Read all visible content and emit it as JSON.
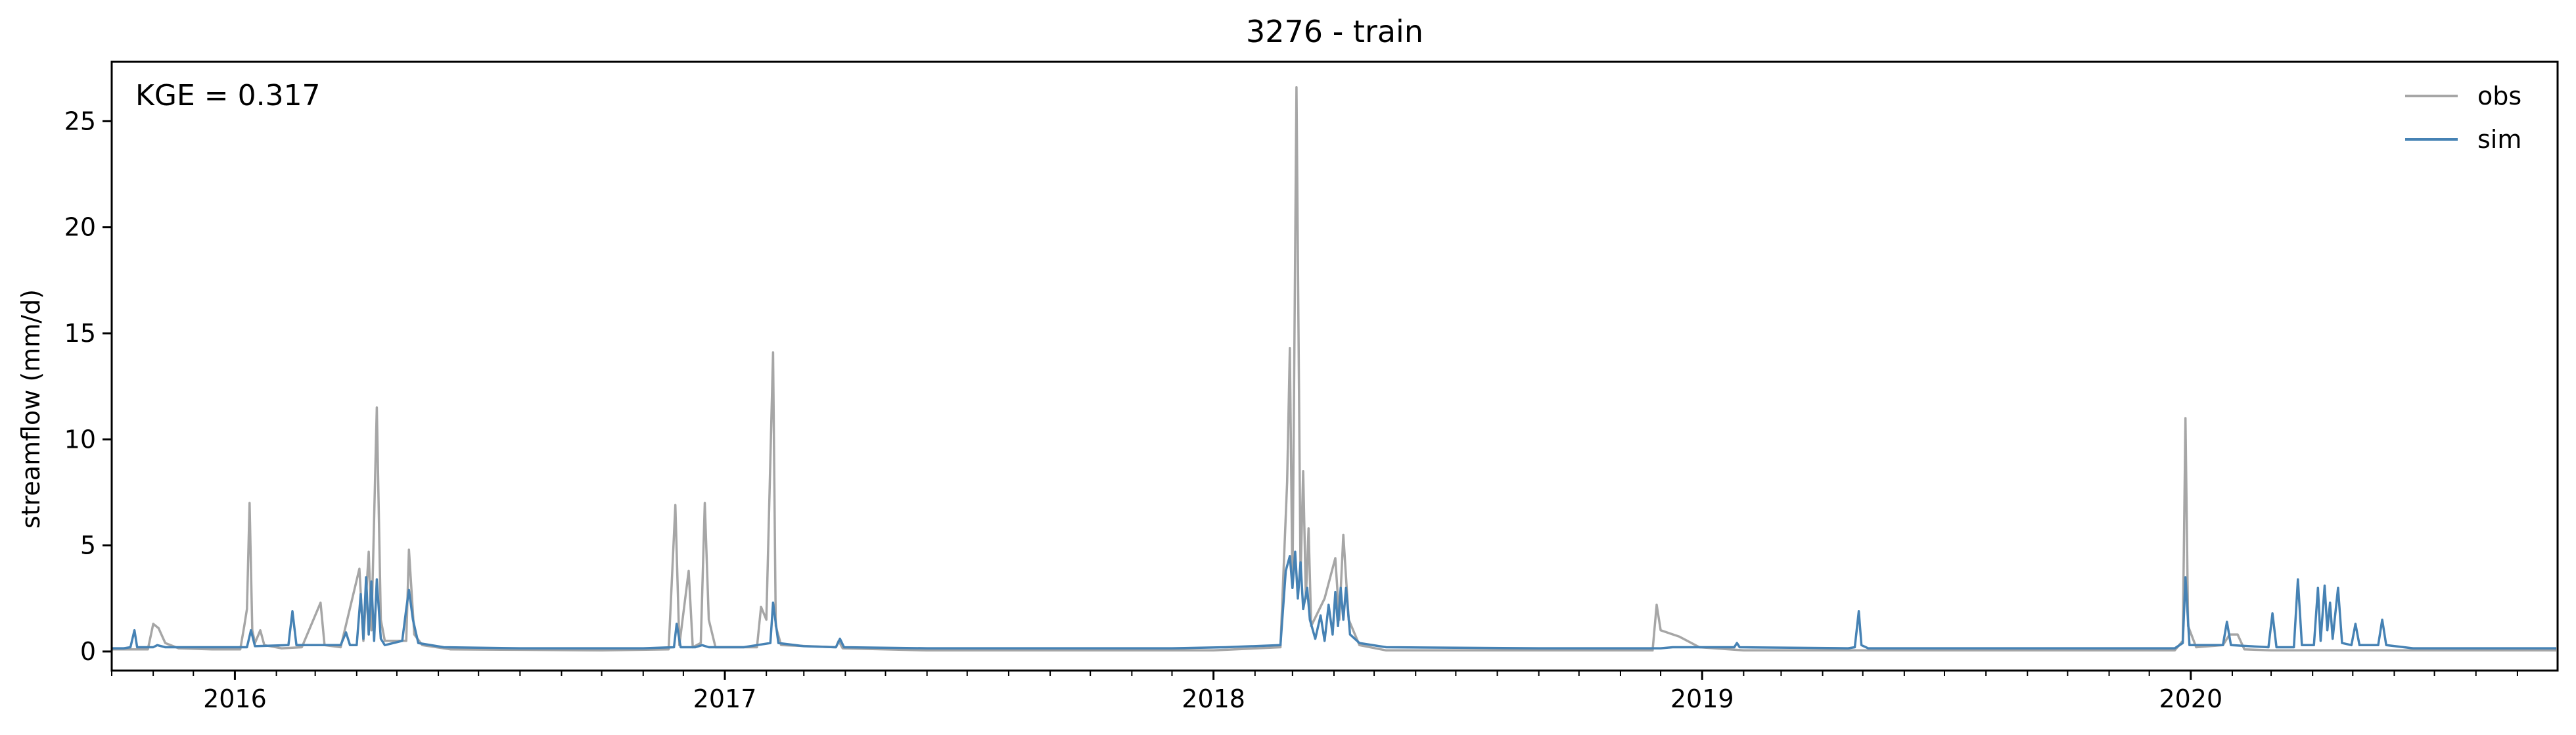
{
  "chart_data": {
    "type": "line",
    "title": "3276 - train",
    "xlabel": "",
    "ylabel": "streamflow (mm/d)",
    "x_start": "2015-10-01",
    "x_end": "2020-09-30",
    "xticks": [
      {
        "date": "2016-01-01",
        "label": "2016"
      },
      {
        "date": "2017-01-01",
        "label": "2017"
      },
      {
        "date": "2018-01-01",
        "label": "2018"
      },
      {
        "date": "2019-01-01",
        "label": "2019"
      },
      {
        "date": "2020-01-01",
        "label": "2020"
      }
    ],
    "yticks": [
      0,
      5,
      10,
      15,
      20,
      25
    ],
    "ylim": [
      -0.9,
      27.8
    ],
    "grid": false,
    "legend_position": "top-right",
    "annotation": "KGE = 0.317",
    "series": [
      {
        "name": "obs",
        "color": "#a6a6a6",
        "points": [
          [
            "2015-10-01",
            0.1
          ],
          [
            "2015-10-20",
            0.1
          ],
          [
            "2015-10-28",
            0.1
          ],
          [
            "2015-11-01",
            1.3
          ],
          [
            "2015-11-05",
            1.1
          ],
          [
            "2015-11-10",
            0.4
          ],
          [
            "2015-11-20",
            0.15
          ],
          [
            "2015-12-15",
            0.1
          ],
          [
            "2016-01-05",
            0.1
          ],
          [
            "2016-01-08",
            1.2
          ],
          [
            "2016-01-10",
            2.0
          ],
          [
            "2016-01-12",
            7.0
          ],
          [
            "2016-01-14",
            1.0
          ],
          [
            "2016-01-16",
            0.4
          ],
          [
            "2016-01-20",
            1.0
          ],
          [
            "2016-01-23",
            0.3
          ],
          [
            "2016-02-05",
            0.15
          ],
          [
            "2016-02-20",
            0.2
          ],
          [
            "2016-03-05",
            2.3
          ],
          [
            "2016-03-08",
            0.3
          ],
          [
            "2016-03-20",
            0.2
          ],
          [
            "2016-04-03",
            3.9
          ],
          [
            "2016-04-06",
            0.5
          ],
          [
            "2016-04-10",
            4.7
          ],
          [
            "2016-04-12",
            1.0
          ],
          [
            "2016-04-16",
            11.5
          ],
          [
            "2016-04-19",
            1.5
          ],
          [
            "2016-04-22",
            0.5
          ],
          [
            "2016-05-08",
            0.5
          ],
          [
            "2016-05-10",
            4.8
          ],
          [
            "2016-05-14",
            0.8
          ],
          [
            "2016-05-20",
            0.3
          ],
          [
            "2016-06-10",
            0.1
          ],
          [
            "2016-08-01",
            0.08
          ],
          [
            "2016-10-01",
            0.05
          ],
          [
            "2016-11-20",
            0.1
          ],
          [
            "2016-11-25",
            6.9
          ],
          [
            "2016-11-28",
            0.3
          ],
          [
            "2016-12-05",
            3.8
          ],
          [
            "2016-12-08",
            0.2
          ],
          [
            "2016-12-14",
            0.4
          ],
          [
            "2016-12-17",
            7.0
          ],
          [
            "2016-12-20",
            1.5
          ],
          [
            "2016-12-25",
            0.2
          ],
          [
            "2017-01-25",
            0.2
          ],
          [
            "2017-01-28",
            2.1
          ],
          [
            "2017-02-01",
            1.5
          ],
          [
            "2017-02-06",
            14.1
          ],
          [
            "2017-02-08",
            1.2
          ],
          [
            "2017-02-12",
            0.3
          ],
          [
            "2017-03-25",
            0.2
          ],
          [
            "2017-03-27",
            0.5
          ],
          [
            "2017-03-30",
            0.15
          ],
          [
            "2017-06-01",
            0.05
          ],
          [
            "2017-10-01",
            0.05
          ],
          [
            "2018-01-01",
            0.05
          ],
          [
            "2018-02-20",
            0.2
          ],
          [
            "2018-02-25",
            8.0
          ],
          [
            "2018-02-27",
            14.3
          ],
          [
            "2018-03-01",
            3.0
          ],
          [
            "2018-03-04",
            26.6
          ],
          [
            "2018-03-07",
            3.5
          ],
          [
            "2018-03-09",
            8.5
          ],
          [
            "2018-03-11",
            2.5
          ],
          [
            "2018-03-13",
            5.8
          ],
          [
            "2018-03-15",
            1.2
          ],
          [
            "2018-03-25",
            2.5
          ],
          [
            "2018-04-02",
            4.4
          ],
          [
            "2018-04-05",
            1.5
          ],
          [
            "2018-04-08",
            5.5
          ],
          [
            "2018-04-12",
            1.5
          ],
          [
            "2018-04-20",
            0.3
          ],
          [
            "2018-05-10",
            0.05
          ],
          [
            "2018-09-01",
            0.05
          ],
          [
            "2018-11-25",
            0.05
          ],
          [
            "2018-11-28",
            2.2
          ],
          [
            "2018-12-01",
            1.0
          ],
          [
            "2018-12-15",
            0.7
          ],
          [
            "2018-12-30",
            0.2
          ],
          [
            "2019-02-01",
            0.05
          ],
          [
            "2019-04-25",
            0.05
          ],
          [
            "2019-05-01",
            0.05
          ],
          [
            "2019-10-01",
            0.05
          ],
          [
            "2019-12-20",
            0.05
          ],
          [
            "2019-12-26",
            0.5
          ],
          [
            "2019-12-28",
            11.0
          ],
          [
            "2019-12-30",
            1.2
          ],
          [
            "2020-01-05",
            0.2
          ],
          [
            "2020-01-25",
            0.3
          ],
          [
            "2020-01-30",
            0.8
          ],
          [
            "2020-02-05",
            0.8
          ],
          [
            "2020-02-10",
            0.1
          ],
          [
            "2020-03-01",
            0.05
          ],
          [
            "2020-09-30",
            0.05
          ]
        ]
      },
      {
        "name": "sim",
        "color": "#4682b4",
        "points": [
          [
            "2015-10-01",
            0.15
          ],
          [
            "2015-10-10",
            0.15
          ],
          [
            "2015-10-15",
            0.2
          ],
          [
            "2015-10-18",
            1.0
          ],
          [
            "2015-10-20",
            0.2
          ],
          [
            "2015-11-01",
            0.2
          ],
          [
            "2015-11-04",
            0.3
          ],
          [
            "2015-11-10",
            0.2
          ],
          [
            "2015-12-15",
            0.2
          ],
          [
            "2016-01-10",
            0.2
          ],
          [
            "2016-01-13",
            1.0
          ],
          [
            "2016-01-16",
            0.25
          ],
          [
            "2016-02-10",
            0.3
          ],
          [
            "2016-02-13",
            1.9
          ],
          [
            "2016-02-16",
            0.3
          ],
          [
            "2016-03-01",
            0.3
          ],
          [
            "2016-03-20",
            0.3
          ],
          [
            "2016-03-24",
            0.9
          ],
          [
            "2016-03-27",
            0.3
          ],
          [
            "2016-04-01",
            0.3
          ],
          [
            "2016-04-04",
            2.7
          ],
          [
            "2016-04-06",
            0.6
          ],
          [
            "2016-04-08",
            3.5
          ],
          [
            "2016-04-10",
            0.8
          ],
          [
            "2016-04-12",
            3.3
          ],
          [
            "2016-04-14",
            0.5
          ],
          [
            "2016-04-16",
            3.4
          ],
          [
            "2016-04-19",
            0.6
          ],
          [
            "2016-04-22",
            0.3
          ],
          [
            "2016-05-05",
            0.5
          ],
          [
            "2016-05-08",
            2.0
          ],
          [
            "2016-05-10",
            2.9
          ],
          [
            "2016-05-13",
            1.5
          ],
          [
            "2016-05-17",
            0.4
          ],
          [
            "2016-06-05",
            0.2
          ],
          [
            "2016-08-01",
            0.15
          ],
          [
            "2016-11-01",
            0.15
          ],
          [
            "2016-11-24",
            0.2
          ],
          [
            "2016-11-26",
            1.3
          ],
          [
            "2016-11-29",
            0.2
          ],
          [
            "2016-12-10",
            0.2
          ],
          [
            "2016-12-15",
            0.3
          ],
          [
            "2016-12-20",
            0.2
          ],
          [
            "2017-01-15",
            0.2
          ],
          [
            "2017-01-25",
            0.3
          ],
          [
            "2017-02-04",
            0.4
          ],
          [
            "2017-02-06",
            2.3
          ],
          [
            "2017-02-10",
            0.4
          ],
          [
            "2017-03-01",
            0.25
          ],
          [
            "2017-03-25",
            0.2
          ],
          [
            "2017-03-28",
            0.6
          ],
          [
            "2017-03-31",
            0.2
          ],
          [
            "2017-06-01",
            0.15
          ],
          [
            "2017-12-01",
            0.15
          ],
          [
            "2018-01-10",
            0.2
          ],
          [
            "2018-02-20",
            0.3
          ],
          [
            "2018-02-24",
            3.8
          ],
          [
            "2018-02-27",
            4.5
          ],
          [
            "2018-03-01",
            3.0
          ],
          [
            "2018-03-03",
            4.7
          ],
          [
            "2018-03-05",
            2.5
          ],
          [
            "2018-03-07",
            4.2
          ],
          [
            "2018-03-09",
            2.0
          ],
          [
            "2018-03-12",
            3.0
          ],
          [
            "2018-03-14",
            1.5
          ],
          [
            "2018-03-18",
            0.6
          ],
          [
            "2018-03-22",
            1.7
          ],
          [
            "2018-03-25",
            0.5
          ],
          [
            "2018-03-28",
            2.2
          ],
          [
            "2018-03-31",
            0.8
          ],
          [
            "2018-04-02",
            2.8
          ],
          [
            "2018-04-04",
            1.2
          ],
          [
            "2018-04-06",
            3.0
          ],
          [
            "2018-04-08",
            1.5
          ],
          [
            "2018-04-10",
            3.0
          ],
          [
            "2018-04-13",
            0.8
          ],
          [
            "2018-04-20",
            0.4
          ],
          [
            "2018-05-10",
            0.2
          ],
          [
            "2018-09-01",
            0.15
          ],
          [
            "2018-12-01",
            0.15
          ],
          [
            "2018-12-10",
            0.2
          ],
          [
            "2019-01-25",
            0.2
          ],
          [
            "2019-01-27",
            0.4
          ],
          [
            "2019-01-29",
            0.2
          ],
          [
            "2019-04-20",
            0.15
          ],
          [
            "2019-04-25",
            0.2
          ],
          [
            "2019-04-28",
            1.9
          ],
          [
            "2019-04-30",
            0.3
          ],
          [
            "2019-05-05",
            0.15
          ],
          [
            "2019-12-20",
            0.15
          ],
          [
            "2019-12-26",
            0.4
          ],
          [
            "2019-12-28",
            3.5
          ],
          [
            "2019-12-31",
            0.3
          ],
          [
            "2020-01-25",
            0.3
          ],
          [
            "2020-01-28",
            1.4
          ],
          [
            "2020-01-31",
            0.3
          ],
          [
            "2020-02-28",
            0.2
          ],
          [
            "2020-03-02",
            1.8
          ],
          [
            "2020-03-05",
            0.2
          ],
          [
            "2020-03-18",
            0.2
          ],
          [
            "2020-03-21",
            3.4
          ],
          [
            "2020-03-24",
            0.3
          ],
          [
            "2020-04-02",
            0.3
          ],
          [
            "2020-04-05",
            3.0
          ],
          [
            "2020-04-07",
            0.5
          ],
          [
            "2020-04-10",
            3.1
          ],
          [
            "2020-04-12",
            1.0
          ],
          [
            "2020-04-14",
            2.3
          ],
          [
            "2020-04-16",
            0.6
          ],
          [
            "2020-04-20",
            3.0
          ],
          [
            "2020-04-23",
            0.4
          ],
          [
            "2020-04-30",
            0.3
          ],
          [
            "2020-05-03",
            1.3
          ],
          [
            "2020-05-06",
            0.3
          ],
          [
            "2020-05-20",
            0.3
          ],
          [
            "2020-05-23",
            1.5
          ],
          [
            "2020-05-26",
            0.3
          ],
          [
            "2020-06-15",
            0.15
          ],
          [
            "2020-09-30",
            0.15
          ]
        ]
      }
    ]
  }
}
